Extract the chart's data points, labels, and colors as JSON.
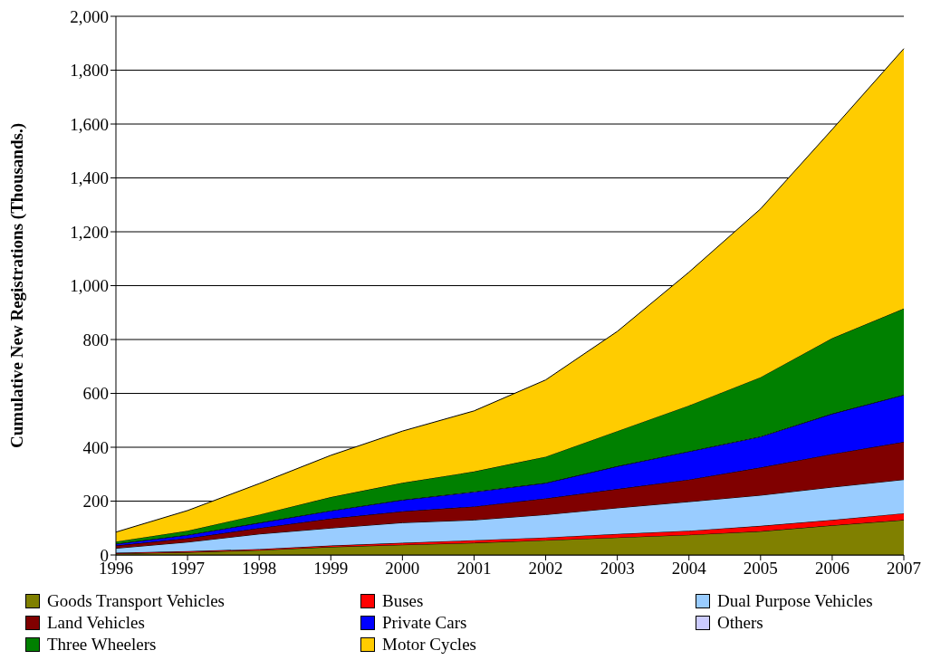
{
  "chart_data": {
    "type": "area",
    "stacked": true,
    "ylabel": "Cumulative New Registrations (Thousands.)",
    "categories": [
      "1996",
      "1997",
      "1998",
      "1999",
      "2000",
      "2001",
      "2002",
      "2003",
      "2004",
      "2005",
      "2006",
      "2007"
    ],
    "ylim": [
      0,
      2000
    ],
    "yticks": [
      {
        "value": 0,
        "label": "0"
      },
      {
        "value": 200,
        "label": "200"
      },
      {
        "value": 400,
        "label": "400"
      },
      {
        "value": 600,
        "label": "600"
      },
      {
        "value": 800,
        "label": "800"
      },
      {
        "value": 1000,
        "label": "1,000"
      },
      {
        "value": 1200,
        "label": "1,200"
      },
      {
        "value": 1400,
        "label": "1,400"
      },
      {
        "value": 1600,
        "label": "1,600"
      },
      {
        "value": 1800,
        "label": "1,800"
      },
      {
        "value": 2000,
        "label": "2,000"
      }
    ],
    "grid": "y",
    "legend": "bottom",
    "series": [
      {
        "name": "Goods Transport Vehicles",
        "color": "#808000",
        "values": [
          5,
          10,
          18,
          30,
          38,
          45,
          55,
          65,
          75,
          88,
          110,
          130
        ]
      },
      {
        "name": "Buses",
        "color": "#ff0000",
        "values": [
          3,
          4,
          4,
          5,
          7,
          10,
          10,
          13,
          15,
          20,
          20,
          25
        ]
      },
      {
        "name": "Dual Purpose Vehicles",
        "color": "#99ccff",
        "values": [
          17,
          34,
          56,
          65,
          75,
          75,
          85,
          97,
          108,
          114,
          122,
          125
        ]
      },
      {
        "name": "Land Vehicles",
        "color": "#800000",
        "values": [
          10,
          14,
          22,
          35,
          42,
          50,
          60,
          70,
          82,
          103,
          123,
          140
        ]
      },
      {
        "name": "Private Cars",
        "color": "#0000ff",
        "values": [
          6,
          12,
          19,
          29,
          42,
          54,
          57,
          84,
          104,
          114,
          149,
          174
        ]
      },
      {
        "name": "Others",
        "color": "#ccccff",
        "values": [
          1,
          1,
          1,
          1,
          1,
          1,
          1,
          1,
          1,
          1,
          1,
          1
        ]
      },
      {
        "name": "Three Wheelers",
        "color": "#008000",
        "values": [
          8,
          15,
          30,
          50,
          63,
          75,
          97,
          130,
          170,
          220,
          280,
          320
        ]
      },
      {
        "name": "Motor Cycles",
        "color": "#ffcc00",
        "values": [
          35,
          75,
          115,
          155,
          192,
          225,
          285,
          370,
          495,
          625,
          775,
          965
        ]
      }
    ]
  }
}
